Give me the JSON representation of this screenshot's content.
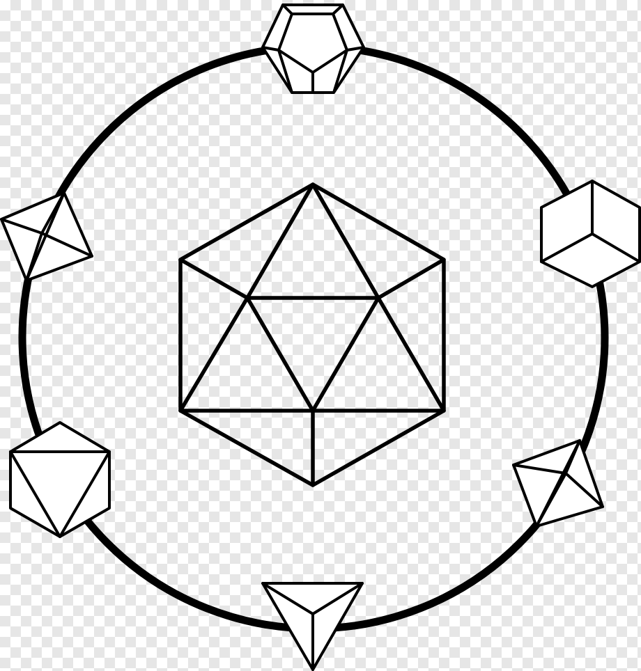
{
  "diagram": {
    "background": "transparent-checkerboard",
    "stroke_color": "#000000",
    "fill_color": "#ffffff",
    "checker_color": "#e6e6e6",
    "ring": {
      "shape": "circle"
    },
    "center_solid": {
      "name": "icosahedron",
      "icon": "icosahedron-icon"
    },
    "orbit_solids": [
      {
        "name": "dodecahedron",
        "icon": "dodecahedron-icon",
        "position": "top"
      },
      {
        "name": "cube",
        "icon": "cube-icon",
        "position": "upper-right"
      },
      {
        "name": "octahedron",
        "icon": "octahedron-icon",
        "position": "lower-right"
      },
      {
        "name": "tetrahedron",
        "icon": "tetrahedron-icon",
        "position": "bottom"
      },
      {
        "name": "icosahedron",
        "icon": "icosahedron-small-icon",
        "position": "lower-left"
      },
      {
        "name": "octahedron",
        "icon": "octahedron-left-icon",
        "position": "upper-left"
      }
    ]
  }
}
